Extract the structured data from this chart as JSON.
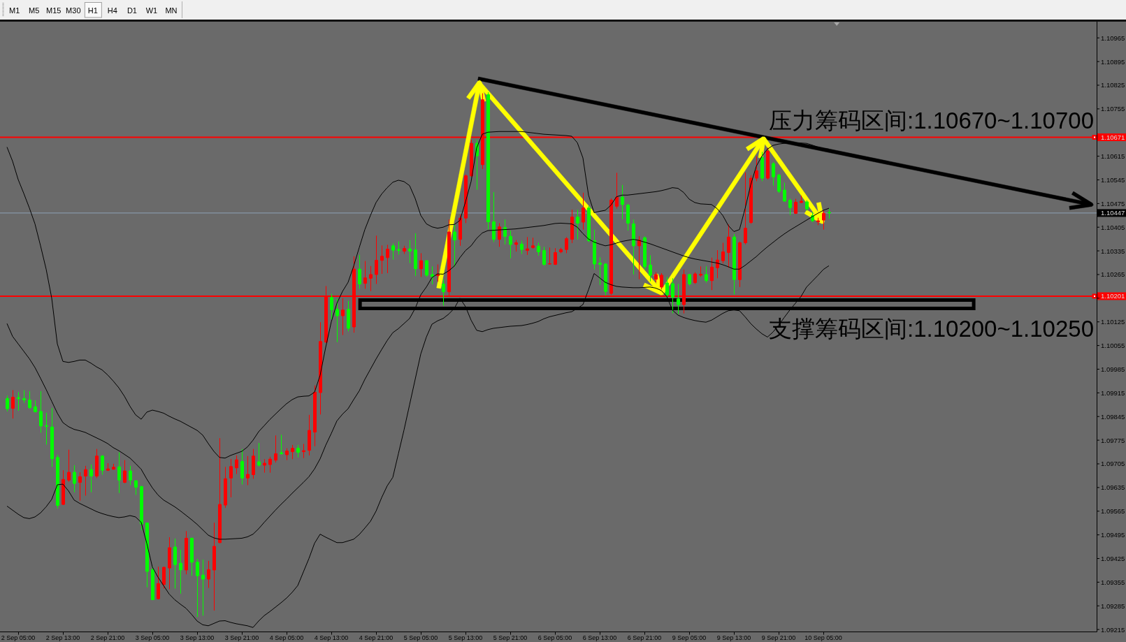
{
  "chart_data": {
    "type": "candlestick",
    "categories": [
      null,
      null,
      "2 Sep 05:00",
      null,
      null,
      null,
      null,
      null,
      null,
      null,
      "2 Sep 13:00",
      null,
      null,
      null,
      null,
      null,
      null,
      null,
      "2 Sep 21:00",
      null,
      null,
      null,
      null,
      null,
      null,
      null,
      "3 Sep 05:00",
      null,
      null,
      null,
      null,
      null,
      null,
      null,
      "3 Sep 13:00",
      null,
      null,
      null,
      null,
      null,
      null,
      null,
      "3 Sep 21:00",
      null,
      null,
      null,
      null,
      null,
      null,
      null,
      "4 Sep 05:00",
      null,
      null,
      null,
      null,
      null,
      null,
      null,
      "4 Sep 13:00",
      null,
      null,
      null,
      null,
      null,
      null,
      null,
      "4 Sep 21:00",
      null,
      null,
      null,
      null,
      null,
      null,
      null,
      "5 Sep 05:00",
      null,
      null,
      null,
      null,
      null,
      null,
      null,
      "5 Sep 13:00",
      null,
      null,
      null,
      null,
      null,
      null,
      null,
      "5 Sep 21:00",
      null,
      null,
      null,
      null,
      null,
      null,
      null,
      "6 Sep 05:00",
      null,
      null,
      null,
      null,
      null,
      null,
      null,
      "6 Sep 13:00",
      null,
      null,
      null,
      null,
      null,
      null,
      null,
      "6 Sep 21:00",
      null,
      null,
      null,
      null,
      null,
      null,
      null,
      "9 Sep 05:00",
      null,
      null,
      null,
      null,
      null,
      null,
      null,
      "9 Sep 13:00",
      null,
      null,
      null,
      null,
      null,
      null,
      null,
      "9 Sep 21:00",
      null,
      null,
      null,
      null,
      null,
      null,
      null,
      "10 Sep 05:00",
      null
    ],
    "ohlc": [
      [
        1.09898,
        1.09907,
        1.0986,
        1.09868
      ],
      [
        1.09869,
        1.09923,
        1.09839,
        1.09902
      ],
      [
        1.09901,
        1.09917,
        1.09862,
        1.09898
      ],
      [
        1.09898,
        1.09923,
        1.09885,
        1.09894
      ],
      [
        1.09894,
        1.0992,
        1.09868,
        1.09871
      ],
      [
        1.09874,
        1.09893,
        1.09857,
        1.09859
      ],
      [
        1.0986,
        1.0992,
        1.09797,
        1.09817
      ],
      [
        1.09818,
        1.09856,
        1.09762,
        1.09816
      ],
      [
        1.09814,
        1.0987,
        1.09696,
        1.0972
      ],
      [
        1.09724,
        1.09732,
        1.09573,
        1.09582
      ],
      [
        1.09585,
        1.09686,
        1.09583,
        1.09659
      ],
      [
        1.09657,
        1.09747,
        1.09652,
        1.0968
      ],
      [
        1.0968,
        1.09701,
        1.09621,
        1.09647
      ],
      [
        1.0965,
        1.0968,
        1.09596,
        1.09667
      ],
      [
        1.09669,
        1.09699,
        1.09611,
        1.09688
      ],
      [
        1.09688,
        1.09703,
        1.09621,
        1.09669
      ],
      [
        1.09669,
        1.09749,
        1.09663,
        1.09728
      ],
      [
        1.09728,
        1.09731,
        1.09673,
        1.09686
      ],
      [
        1.09686,
        1.09707,
        1.09684,
        1.0969
      ],
      [
        1.09689,
        1.09705,
        1.09688,
        1.09695
      ],
      [
        1.09696,
        1.09739,
        1.09619,
        1.09657
      ],
      [
        1.0965,
        1.09716,
        1.09648,
        1.09684
      ],
      [
        1.09684,
        1.09699,
        1.09642,
        1.09657
      ],
      [
        1.09655,
        1.09657,
        1.09613,
        1.09636
      ],
      [
        1.09638,
        1.0964,
        1.09508,
        1.09527
      ],
      [
        1.0953,
        1.09531,
        1.0934,
        1.09387
      ],
      [
        1.09392,
        1.09401,
        1.09302,
        1.09303
      ],
      [
        1.09306,
        1.09401,
        1.09304,
        1.09351
      ],
      [
        1.09348,
        1.09401,
        1.09336,
        1.09399
      ],
      [
        1.09397,
        1.09488,
        1.09334,
        1.09457
      ],
      [
        1.09459,
        1.09484,
        1.09336,
        1.09407
      ],
      [
        1.09411,
        1.09451,
        1.09321,
        1.09391
      ],
      [
        1.09391,
        1.09506,
        1.09378,
        1.09485
      ],
      [
        1.09485,
        1.09487,
        1.09374,
        1.09414
      ],
      [
        1.09414,
        1.09424,
        1.09252,
        1.09374
      ],
      [
        1.09376,
        1.09422,
        1.09256,
        1.09364
      ],
      [
        1.09364,
        1.09418,
        1.09338,
        1.09392
      ],
      [
        1.09391,
        1.09531,
        1.09271,
        1.09461
      ],
      [
        1.09472,
        1.09781,
        1.0947,
        1.09585
      ],
      [
        1.09583,
        1.09696,
        1.09575,
        1.09661
      ],
      [
        1.09663,
        1.09719,
        1.09606,
        1.09697
      ],
      [
        1.09693,
        1.0973,
        1.09675,
        1.09717
      ],
      [
        1.09712,
        1.09749,
        1.09644,
        1.09663
      ],
      [
        1.09663,
        1.09728,
        1.09642,
        1.09674
      ],
      [
        1.09673,
        1.09749,
        1.09661,
        1.09728
      ],
      [
        1.09711,
        1.09767,
        1.09697,
        1.09701
      ],
      [
        1.09701,
        1.09719,
        1.09679,
        1.09707
      ],
      [
        1.09703,
        1.09726,
        1.09679,
        1.09719
      ],
      [
        1.09716,
        1.09789,
        1.09709,
        1.09735
      ],
      [
        1.09738,
        1.09791,
        1.09732,
        1.09735
      ],
      [
        1.09732,
        1.09751,
        1.09716,
        1.09743
      ],
      [
        1.09741,
        1.09761,
        1.09719,
        1.09751
      ],
      [
        1.09751,
        1.09761,
        1.09724,
        1.09739
      ],
      [
        1.09741,
        1.09764,
        1.09722,
        1.09744
      ],
      [
        1.09745,
        1.0985,
        1.0973,
        1.09804
      ],
      [
        1.09799,
        1.09937,
        1.09757,
        1.09917
      ],
      [
        1.09916,
        1.10124,
        1.09851,
        1.10067
      ],
      [
        1.10065,
        1.10231,
        1.10063,
        1.102
      ],
      [
        1.10197,
        1.10208,
        1.10132,
        1.10161
      ],
      [
        1.10162,
        1.10193,
        1.10065,
        1.10143
      ],
      [
        1.10143,
        1.10195,
        1.10086,
        1.1016
      ],
      [
        1.10162,
        1.10187,
        1.10097,
        1.10106
      ],
      [
        1.1011,
        1.10319,
        1.10093,
        1.10281
      ],
      [
        1.10281,
        1.10323,
        1.10223,
        1.10237
      ],
      [
        1.10239,
        1.10305,
        1.10223,
        1.10255
      ],
      [
        1.10254,
        1.1029,
        1.10216,
        1.10265
      ],
      [
        1.10265,
        1.1038,
        1.10237,
        1.10307
      ],
      [
        1.10307,
        1.10351,
        1.10267,
        1.10319
      ],
      [
        1.10315,
        1.10353,
        1.10269,
        1.1034
      ],
      [
        1.1035,
        1.10357,
        1.10309,
        1.10337
      ],
      [
        1.10339,
        1.10363,
        1.10324,
        1.10336
      ],
      [
        1.10334,
        1.1035,
        1.10326,
        1.10342
      ],
      [
        1.10341,
        1.10367,
        1.10299,
        1.10334
      ],
      [
        1.10338,
        1.10387,
        1.10261,
        1.10282
      ],
      [
        1.10282,
        1.10328,
        1.10258,
        1.10306
      ],
      [
        1.10306,
        1.10308,
        1.10258,
        1.10263
      ],
      [
        1.10265,
        1.10289,
        1.10236,
        1.10259
      ],
      [
        1.10262,
        1.10295,
        1.10244,
        1.10266
      ],
      [
        1.10237,
        1.10251,
        1.10173,
        1.10214
      ],
      [
        1.10214,
        1.10428,
        1.10199,
        1.10391
      ],
      [
        1.10391,
        1.10413,
        1.10288,
        1.10367
      ],
      [
        1.10369,
        1.10443,
        1.1035,
        1.10432
      ],
      [
        1.10432,
        1.10561,
        1.10417,
        1.10557
      ],
      [
        1.10557,
        1.10664,
        1.10553,
        1.10653
      ],
      [
        1.10653,
        1.10664,
        1.10516,
        1.10616
      ],
      [
        1.1059,
        1.10801,
        1.10577,
        1.10782
      ],
      [
        1.10797,
        1.10804,
        1.10398,
        1.10421
      ],
      [
        1.10421,
        1.10509,
        1.10361,
        1.10369
      ],
      [
        1.10369,
        1.10417,
        1.10347,
        1.10406
      ],
      [
        1.10404,
        1.10428,
        1.10354,
        1.10378
      ],
      [
        1.10378,
        1.10395,
        1.10313,
        1.10354
      ],
      [
        1.10354,
        1.10367,
        1.10333,
        1.10359
      ],
      [
        1.10355,
        1.10365,
        1.10326,
        1.10339
      ],
      [
        1.10336,
        1.10376,
        1.10323,
        1.10341
      ],
      [
        1.10345,
        1.10374,
        1.10341,
        1.1035
      ],
      [
        1.10349,
        1.10359,
        1.10321,
        1.10332
      ],
      [
        1.10336,
        1.10347,
        1.10291,
        1.10295
      ],
      [
        1.10296,
        1.10345,
        1.10295,
        1.10297
      ],
      [
        1.10295,
        1.10343,
        1.10293,
        1.1033
      ],
      [
        1.10332,
        1.10344,
        1.10328,
        1.10339
      ],
      [
        1.10339,
        1.10376,
        1.10328,
        1.10371
      ],
      [
        1.10369,
        1.10457,
        1.10358,
        1.10435
      ],
      [
        1.10435,
        1.10457,
        1.10369,
        1.10417
      ],
      [
        1.1042,
        1.10507,
        1.10398,
        1.10462
      ],
      [
        1.10462,
        1.10468,
        1.10361,
        1.10365
      ],
      [
        1.10365,
        1.10398,
        1.1028,
        1.10296
      ],
      [
        1.10299,
        1.10316,
        1.10234,
        1.10295
      ],
      [
        1.10296,
        1.10299,
        1.10203,
        1.10215
      ],
      [
        1.10209,
        1.1049,
        1.10205,
        1.10485
      ],
      [
        1.10467,
        1.10566,
        1.1046,
        1.10494
      ],
      [
        1.10494,
        1.1053,
        1.10428,
        1.10472
      ],
      [
        1.1047,
        1.10474,
        1.10395,
        1.10417
      ],
      [
        1.10415,
        1.10428,
        1.10265,
        1.1035
      ],
      [
        1.1035,
        1.10378,
        1.10251,
        1.10367
      ],
      [
        1.10374,
        1.10378,
        1.1028,
        1.10288
      ],
      [
        1.10293,
        1.10322,
        1.10245,
        1.10263
      ],
      [
        1.10251,
        1.10272,
        1.10242,
        1.10265
      ],
      [
        1.10228,
        1.10269,
        1.10221,
        1.10263
      ],
      [
        1.1024,
        1.10258,
        1.10195,
        1.10205
      ],
      [
        1.10238,
        1.10254,
        1.1015,
        1.10198
      ],
      [
        1.10193,
        1.10237,
        1.10148,
        1.10176
      ],
      [
        1.10176,
        1.1028,
        1.1015,
        1.10265
      ],
      [
        1.10265,
        1.10267,
        1.10232,
        1.10237
      ],
      [
        1.10241,
        1.10272,
        1.10237,
        1.10267
      ],
      [
        1.10263,
        1.10289,
        1.10258,
        1.10266
      ],
      [
        1.10265,
        1.10289,
        1.10241,
        1.10247
      ],
      [
        1.10247,
        1.10315,
        1.10219,
        1.10287
      ],
      [
        1.10285,
        1.10337,
        1.10254,
        1.10308
      ],
      [
        1.10306,
        1.10359,
        1.10298,
        1.10332
      ],
      [
        1.1033,
        1.10413,
        1.10285,
        1.10376
      ],
      [
        1.10376,
        1.10385,
        1.10206,
        1.1025
      ],
      [
        1.1025,
        1.10363,
        1.10228,
        1.10359
      ],
      [
        1.10359,
        1.10567,
        1.10354,
        1.10402
      ],
      [
        1.10419,
        1.10559,
        1.10415,
        1.1055
      ],
      [
        1.1055,
        1.10615,
        1.10541,
        1.10572
      ],
      [
        1.10611,
        1.10628,
        1.10541,
        1.1055
      ],
      [
        1.1055,
        1.1064,
        1.10546,
        1.1063
      ],
      [
        1.10593,
        1.10598,
        1.10528,
        1.10554
      ],
      [
        1.10559,
        1.10563,
        1.10506,
        1.10511
      ],
      [
        1.10515,
        1.10537,
        1.1048,
        1.10482
      ],
      [
        1.10485,
        1.10489,
        1.10441,
        1.10463
      ],
      [
        1.10446,
        1.10489,
        1.10444,
        1.10479
      ],
      [
        1.10478,
        1.10498,
        1.10476,
        1.10482
      ],
      [
        1.1048,
        1.10485,
        1.10454,
        1.10459
      ],
      [
        1.10439,
        1.1045,
        1.1042,
        1.10424
      ],
      [
        1.10421,
        1.10433,
        1.10411,
        1.10424
      ],
      [
        1.10426,
        1.10454,
        1.10398,
        1.10446
      ],
      [
        1.10449,
        1.10459,
        1.1043,
        1.10447
      ]
    ],
    "colors": [
      "#00ff00",
      "#ff0000",
      "#00ff00",
      "#00ff00",
      "#00ff00",
      "#00ff00",
      "#00ff00",
      "#00ff00",
      "#00ff00",
      "#00ff00",
      "#ff0000",
      "#ff0000",
      "#00ff00",
      "#ff0000",
      "#ff0000",
      "#00ff00",
      "#ff0000",
      "#00ff00",
      "#ff0000",
      "#ff0000",
      "#00ff00",
      "#ff0000",
      "#00ff00",
      "#00ff00",
      "#00ff00",
      "#00ff00",
      "#00ff00",
      "#ff0000",
      "#ff0000",
      "#ff0000",
      "#00ff00",
      "#00ff00",
      "#ff0000",
      "#00ff00",
      "#00ff00",
      "#00ff00",
      "#ff0000",
      "#ff0000",
      "#ff0000",
      "#ff0000",
      "#ff0000",
      "#ff0000",
      "#00ff00",
      "#ff0000",
      "#ff0000",
      "#00ff00",
      "#ff0000",
      "#ff0000",
      "#ff0000",
      "#00ff00",
      "#ff0000",
      "#ff0000",
      "#00ff00",
      "#ff0000",
      "#ff0000",
      "#ff0000",
      "#ff0000",
      "#ff0000",
      "#00ff00",
      "#00ff00",
      "#ff0000",
      "#00ff00",
      "#ff0000",
      "#00ff00",
      "#ff0000",
      "#ff0000",
      "#ff0000",
      "#ff0000",
      "#ff0000",
      "#00ff00",
      "#00ff00",
      "#ff0000",
      "#00ff00",
      "#00ff00",
      "#ff0000",
      "#00ff00",
      "#00ff00",
      "#ff0000",
      "#00ff00",
      "#ff0000",
      "#00ff00",
      "#ff0000",
      "#ff0000",
      "#ff0000",
      "#00ff00",
      "#ff0000",
      "#00ff00",
      "#00ff00",
      "#ff0000",
      "#00ff00",
      "#00ff00",
      "#ff0000",
      "#00ff00",
      "#ff0000",
      "#ff0000",
      "#00ff00",
      "#00ff00",
      "#ff0000",
      "#ff0000",
      "#ff0000",
      "#ff0000",
      "#ff0000",
      "#00ff00",
      "#ff0000",
      "#00ff00",
      "#00ff00",
      "#00ff00",
      "#00ff00",
      "#ff0000",
      "#ff0000",
      "#00ff00",
      "#00ff00",
      "#00ff00",
      "#ff0000",
      "#00ff00",
      "#00ff00",
      "#ff0000",
      "#ff0000",
      "#00ff00",
      "#00ff00",
      "#00ff00",
      "#ff0000",
      "#00ff00",
      "#ff0000",
      "#ff0000",
      "#00ff00",
      "#ff0000",
      "#ff0000",
      "#ff0000",
      "#ff0000",
      "#00ff00",
      "#ff0000",
      "#ff0000",
      "#ff0000",
      "#ff0000",
      "#00ff00",
      "#ff0000",
      "#00ff00",
      "#00ff00",
      "#00ff00",
      "#00ff00",
      "#ff0000",
      "#ff0000",
      "#00ff00",
      "#00ff00",
      "#ff0000",
      "#ff0000",
      "#00ff00"
    ],
    "series": [
      {
        "type": "line",
        "color": "#000000",
        "values": [
          1.10642,
          1.106,
          1.10546,
          1.10505,
          1.10462,
          1.10415,
          1.1035,
          1.10281,
          1.10195,
          1.1006,
          1.10008,
          1.10005,
          1.10008,
          1.10012,
          1.10012,
          1.10003,
          1.09992,
          1.09983,
          1.09968,
          1.0995,
          1.0993,
          1.09905,
          1.09875,
          1.0985,
          1.09837,
          1.09858,
          1.09864,
          1.0986,
          1.09855,
          1.09846,
          1.09838,
          1.09831,
          1.09822,
          1.09813,
          1.09804,
          1.0979,
          1.09765,
          1.09742,
          1.09724,
          1.09722,
          1.0973,
          1.09736,
          1.09742,
          1.09755,
          1.09775,
          1.098,
          1.09818,
          1.09836,
          1.09852,
          1.09868,
          1.09883,
          1.09895,
          1.09903,
          1.09905,
          1.09906,
          1.09917,
          1.09967,
          1.1005,
          1.10125,
          1.1018,
          1.10215,
          1.10242,
          1.1029,
          1.10345,
          1.10398,
          1.1044,
          1.10478,
          1.10503,
          1.10522,
          1.10538,
          1.10544,
          1.1054,
          1.10528,
          1.1049,
          1.1044,
          1.10415,
          1.10406,
          1.10402,
          1.10405,
          1.10412,
          1.10413,
          1.10425,
          1.1048,
          1.1054,
          1.1064,
          1.1068,
          1.10686,
          1.10687,
          1.10688,
          1.10688,
          1.10688,
          1.10688,
          1.10688,
          1.10686,
          1.10684,
          1.10682,
          1.1068,
          1.10679,
          1.10678,
          1.10677,
          1.10676,
          1.10674,
          1.10655,
          1.1061,
          1.105,
          1.10448,
          1.10452,
          1.10455,
          1.1047,
          1.10495,
          1.105,
          1.105,
          1.10502,
          1.10504,
          1.10506,
          1.10508,
          1.1051,
          1.10513,
          1.10517,
          1.10522,
          1.1052,
          1.10508,
          1.10488,
          1.10478,
          1.10474,
          1.10473,
          1.10472,
          1.1046,
          1.1044,
          1.1041,
          1.10392,
          1.10398,
          1.1046,
          1.1053,
          1.10585,
          1.10615,
          1.10636,
          1.10647,
          1.10651,
          1.10653,
          1.10654,
          1.10654,
          1.10654,
          1.10653,
          1.10648,
          1.10642,
          1.10638,
          1.10636
        ]
      },
      {
        "type": "line",
        "color": "#000000",
        "values": [
          1.1012,
          1.10082,
          1.1006,
          1.10038,
          1.10016,
          1.0999,
          1.09958,
          1.09925,
          1.0989,
          1.09855,
          1.09827,
          1.09815,
          1.09807,
          1.09803,
          1.09798,
          1.0979,
          1.09782,
          1.09774,
          1.09765,
          1.09753,
          1.09744,
          1.09733,
          1.09722,
          1.09706,
          1.09689,
          1.0966,
          1.09634,
          1.09613,
          1.09598,
          1.09588,
          1.09578,
          1.09566,
          1.09553,
          1.0954,
          1.09526,
          1.0951,
          1.09494,
          1.09486,
          1.09482,
          1.09482,
          1.09483,
          1.09484,
          1.09485,
          1.09489,
          1.09497,
          1.09513,
          1.09532,
          1.0955,
          1.09568,
          1.09585,
          1.09601,
          1.09618,
          1.09634,
          1.0965,
          1.09667,
          1.0969,
          1.0972,
          1.0976,
          1.09795,
          1.09832,
          1.09852,
          1.09868,
          1.09895,
          1.09921,
          1.09955,
          1.09985,
          1.10015,
          1.10043,
          1.1007,
          1.10093,
          1.10105,
          1.1012,
          1.10135,
          1.10165,
          1.10205,
          1.10228,
          1.10256,
          1.10267,
          1.10266,
          1.10276,
          1.1029,
          1.10315,
          1.10336,
          1.1035,
          1.10372,
          1.10388,
          1.10395,
          1.10396,
          1.10397,
          1.10398,
          1.10399,
          1.104,
          1.10402,
          1.10404,
          1.10406,
          1.10408,
          1.1041,
          1.10413,
          1.10416,
          1.10417,
          1.10416,
          1.10415,
          1.10405,
          1.10386,
          1.1037,
          1.10361,
          1.10355,
          1.1035,
          1.10353,
          1.10358,
          1.10363,
          1.10366,
          1.10369,
          1.10366,
          1.10361,
          1.10356,
          1.1035,
          1.10344,
          1.10338,
          1.10332,
          1.10326,
          1.1032,
          1.10315,
          1.10311,
          1.10308,
          1.10305,
          1.10302,
          1.10299,
          1.10294,
          1.10288,
          1.10281,
          1.10281,
          1.10292,
          1.10305,
          1.10318,
          1.10333,
          1.10347,
          1.1036,
          1.10373,
          1.10385,
          1.10396,
          1.10406,
          1.10416,
          1.10426,
          1.10436,
          1.10446,
          1.10455,
          1.10461
        ]
      },
      {
        "type": "line",
        "color": "#000000",
        "values": [
          1.0958,
          1.09568,
          1.09556,
          1.09546,
          1.09543,
          1.09548,
          1.0956,
          1.09578,
          1.096,
          1.09643,
          1.09645,
          1.09625,
          1.09598,
          1.09588,
          1.0958,
          1.09572,
          1.09564,
          1.09558,
          1.09553,
          1.09549,
          1.09546,
          1.09548,
          1.09552,
          1.09548,
          1.09532,
          1.0947,
          1.094,
          1.0937,
          1.09345,
          1.0932,
          1.09303,
          1.0929,
          1.09278,
          1.0926,
          1.0924,
          1.09229,
          1.09226,
          1.09233,
          1.0924,
          1.09241,
          1.09236,
          1.09232,
          1.09229,
          1.09226,
          1.09221,
          1.0924,
          1.09256,
          1.09268,
          1.09281,
          1.09294,
          1.09308,
          1.09325,
          1.09345,
          1.09385,
          1.09425,
          1.0947,
          1.09497,
          1.09488,
          1.0948,
          1.09472,
          1.09472,
          1.09477,
          1.09482,
          1.09496,
          1.09515,
          1.09535,
          1.09565,
          1.09605,
          1.0964,
          1.09665,
          1.09735,
          1.09805,
          1.0988,
          1.09955,
          1.1003,
          1.1008,
          1.10118,
          1.10128,
          1.10135,
          1.10148,
          1.10165,
          1.10195,
          1.1017,
          1.1013,
          1.101,
          1.10096,
          1.10102,
          1.10106,
          1.10108,
          1.1011,
          1.10112,
          1.10113,
          1.10114,
          1.10117,
          1.10121,
          1.10126,
          1.10134,
          1.1014,
          1.10144,
          1.10148,
          1.10152,
          1.10155,
          1.10165,
          1.10176,
          1.1022,
          1.10268,
          1.10255,
          1.10242,
          1.10235,
          1.1023,
          1.10228,
          1.10227,
          1.10226,
          1.10226,
          1.10227,
          1.10228,
          1.10225,
          1.10218,
          1.102,
          1.1016,
          1.10145,
          1.10138,
          1.10133,
          1.10129,
          1.10126,
          1.10124,
          1.1013,
          1.1014,
          1.1015,
          1.10158,
          1.1016,
          1.10158,
          1.1014,
          1.1012,
          1.10104,
          1.1009,
          1.1008,
          1.10095,
          1.10115,
          1.10138,
          1.1016,
          1.1018,
          1.102,
          1.10228,
          1.10245,
          1.10262,
          1.1028,
          1.10291
        ]
      }
    ],
    "ylim": [
      1.09208,
      1.11013
    ],
    "yticks": [
      1.09215,
      1.09285,
      1.09355,
      1.09425,
      1.09495,
      1.09565,
      1.09635,
      1.09705,
      1.09775,
      1.09845,
      1.09915,
      1.09985,
      1.10055,
      1.10125,
      {
        "value": 1.10195,
        "label": null
      },
      1.10265,
      1.10335,
      1.10405,
      1.10475,
      1.10545,
      1.10615,
      1.10755,
      1.10825,
      1.10895,
      1.10965
    ],
    "ref_lines": [
      {
        "axis": "y",
        "value": 1.10671,
        "label": "1.10671",
        "color": "#ff0000"
      },
      {
        "axis": "y",
        "value": 1.10201,
        "label": "1.10201",
        "color": "#ff0000"
      },
      {
        "axis": "y",
        "value": 1.10447,
        "label": "1.10447",
        "color": "#8fa3b8"
      }
    ],
    "annotations": [
      "压力筹码区间:1.10670~1.10700",
      "支撑筹码区间:1.10200~1.10250",
      "M1",
      "M5",
      "M15",
      "M30",
      "H1",
      "H4",
      "D1",
      "W1",
      "MN"
    ]
  }
}
